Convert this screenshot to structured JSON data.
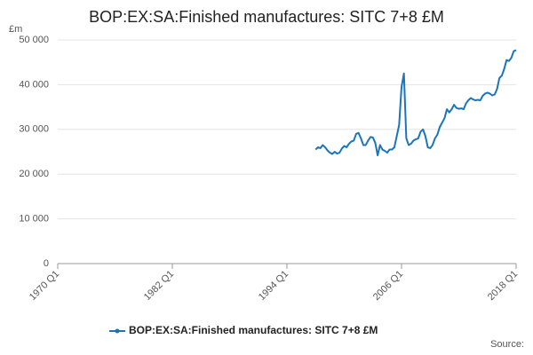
{
  "chart_data": {
    "type": "line",
    "title": "BOP:EX:SA:Finished manufactures: SITC 7+8 £M",
    "y_label": "£m",
    "source": "Source:",
    "x": [
      "1997 Q1",
      "1997 Q2",
      "1997 Q3",
      "1997 Q4",
      "1998 Q1",
      "1998 Q2",
      "1998 Q3",
      "1998 Q4",
      "1999 Q1",
      "1999 Q2",
      "1999 Q3",
      "1999 Q4",
      "2000 Q1",
      "2000 Q2",
      "2000 Q3",
      "2000 Q4",
      "2001 Q1",
      "2001 Q2",
      "2001 Q3",
      "2001 Q4",
      "2002 Q1",
      "2002 Q2",
      "2002 Q3",
      "2002 Q4",
      "2003 Q1",
      "2003 Q2",
      "2003 Q3",
      "2003 Q4",
      "2004 Q1",
      "2004 Q2",
      "2004 Q3",
      "2004 Q4",
      "2005 Q1",
      "2005 Q2",
      "2005 Q3",
      "2005 Q4",
      "2006 Q1",
      "2006 Q2",
      "2006 Q3",
      "2006 Q4",
      "2007 Q1",
      "2007 Q2",
      "2007 Q3",
      "2007 Q4",
      "2008 Q1",
      "2008 Q2",
      "2008 Q3",
      "2008 Q4",
      "2009 Q1",
      "2009 Q2",
      "2009 Q3",
      "2009 Q4",
      "2010 Q1",
      "2010 Q2",
      "2010 Q3",
      "2010 Q4",
      "2011 Q1",
      "2011 Q2",
      "2011 Q3",
      "2011 Q4",
      "2012 Q1",
      "2012 Q2",
      "2012 Q3",
      "2012 Q4",
      "2013 Q1",
      "2013 Q2",
      "2013 Q3",
      "2013 Q4",
      "2014 Q1",
      "2014 Q2",
      "2014 Q3",
      "2014 Q4",
      "2015 Q1",
      "2015 Q2",
      "2015 Q3",
      "2015 Q4",
      "2016 Q1",
      "2016 Q2",
      "2016 Q3",
      "2016 Q4",
      "2017 Q1",
      "2017 Q2",
      "2017 Q3",
      "2017 Q4",
      "2018 Q1"
    ],
    "series": [
      {
        "name": "BOP:EX:SA:Finished manufactures: SITC 7+8 £M",
        "color": "#1b75bb",
        "values": [
          25500,
          26000,
          25800,
          26500,
          26000,
          25300,
          24800,
          24500,
          25000,
          24600,
          24800,
          25700,
          26300,
          26000,
          26800,
          27300,
          27500,
          29000,
          29200,
          28000,
          26500,
          26500,
          27500,
          28300,
          28200,
          27000,
          24200,
          26500,
          25500,
          25200,
          24800,
          25500,
          25500,
          26000,
          28500,
          31000,
          39500,
          42500,
          28000,
          26500,
          26800,
          27500,
          27800,
          28000,
          29500,
          30000,
          28500,
          26000,
          25800,
          26500,
          28000,
          28800,
          30500,
          31500,
          32500,
          34500,
          33800,
          34500,
          35500,
          34800,
          34600,
          34700,
          34500,
          35800,
          36500,
          37000,
          36700,
          36500,
          36600,
          36500,
          37500,
          38000,
          38200,
          38000,
          37600,
          37800,
          39000,
          41500,
          42000,
          43500,
          45500,
          45300,
          46000,
          47500,
          47700
        ]
      }
    ],
    "xlim": [
      "1970 Q1",
      "2018 Q1"
    ],
    "xticks": [
      "1970 Q1",
      "1982 Q1",
      "1994 Q1",
      "2006 Q1",
      "2018 Q1"
    ],
    "ylim": [
      0,
      50000
    ],
    "yticks": [
      0,
      {
        "value": 10000,
        "label": "10 000"
      },
      {
        "value": 20000,
        "label": "20 000"
      },
      {
        "value": 30000,
        "label": "30 000"
      },
      {
        "value": 40000,
        "label": "40 000"
      },
      {
        "value": 50000,
        "label": "50 000"
      }
    ],
    "grid": true
  }
}
